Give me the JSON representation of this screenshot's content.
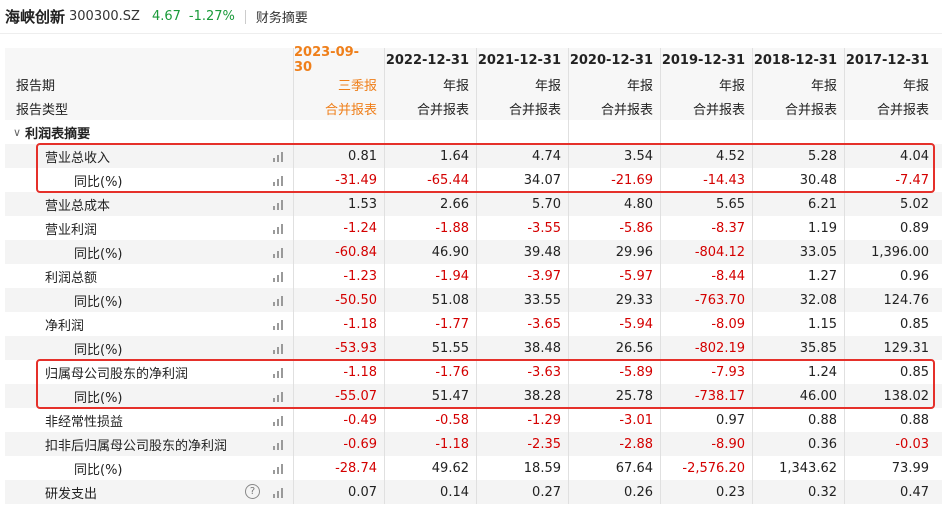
{
  "header": {
    "stock_name": "海峡创新",
    "stock_code": "300300.SZ",
    "price": "4.67",
    "change": "-1.27%",
    "module": "财务摘要"
  },
  "periods": [
    {
      "date": "2023-09-30",
      "type": "三季报",
      "scope": "合并报表",
      "highlight": true
    },
    {
      "date": "2022-12-31",
      "type": "年报",
      "scope": "合并报表"
    },
    {
      "date": "2021-12-31",
      "type": "年报",
      "scope": "合并报表"
    },
    {
      "date": "2020-12-31",
      "type": "年报",
      "scope": "合并报表"
    },
    {
      "date": "2019-12-31",
      "type": "年报",
      "scope": "合并报表"
    },
    {
      "date": "2018-12-31",
      "type": "年报",
      "scope": "合并报表"
    },
    {
      "date": "2017-12-31",
      "type": "年报",
      "scope": "合并报表"
    }
  ],
  "header_labels": {
    "period": "报告期",
    "type": "报告类型"
  },
  "section": {
    "title": "利润表摘要",
    "caret": "∨"
  },
  "rows": [
    {
      "label": "营业总收入",
      "level": 1,
      "values": [
        "0.81",
        "1.64",
        "4.74",
        "3.54",
        "4.52",
        "5.28",
        "4.04"
      ]
    },
    {
      "label": "同比(%)",
      "level": 2,
      "values": [
        "-31.49",
        "-65.44",
        "34.07",
        "-21.69",
        "-14.43",
        "30.48",
        "-7.47"
      ]
    },
    {
      "label": "营业总成本",
      "level": 1,
      "values": [
        "1.53",
        "2.66",
        "5.70",
        "4.80",
        "5.65",
        "6.21",
        "5.02"
      ]
    },
    {
      "label": "营业利润",
      "level": 1,
      "values": [
        "-1.24",
        "-1.88",
        "-3.55",
        "-5.86",
        "-8.37",
        "1.19",
        "0.89"
      ]
    },
    {
      "label": "同比(%)",
      "level": 2,
      "values": [
        "-60.84",
        "46.90",
        "39.48",
        "29.96",
        "-804.12",
        "33.05",
        "1,396.00"
      ]
    },
    {
      "label": "利润总额",
      "level": 1,
      "values": [
        "-1.23",
        "-1.94",
        "-3.97",
        "-5.97",
        "-8.44",
        "1.27",
        "0.96"
      ]
    },
    {
      "label": "同比(%)",
      "level": 2,
      "values": [
        "-50.50",
        "51.08",
        "33.55",
        "29.33",
        "-763.70",
        "32.08",
        "124.76"
      ]
    },
    {
      "label": "净利润",
      "level": 1,
      "values": [
        "-1.18",
        "-1.77",
        "-3.65",
        "-5.94",
        "-8.09",
        "1.15",
        "0.85"
      ]
    },
    {
      "label": "同比(%)",
      "level": 2,
      "values": [
        "-53.93",
        "51.55",
        "38.48",
        "26.56",
        "-802.19",
        "35.85",
        "129.31"
      ]
    },
    {
      "label": "归属母公司股东的净利润",
      "level": 1,
      "values": [
        "-1.18",
        "-1.76",
        "-3.63",
        "-5.89",
        "-7.93",
        "1.24",
        "0.85"
      ]
    },
    {
      "label": "同比(%)",
      "level": 2,
      "values": [
        "-55.07",
        "51.47",
        "38.28",
        "25.78",
        "-738.17",
        "46.00",
        "138.02"
      ]
    },
    {
      "label": "非经常性损益",
      "level": 1,
      "values": [
        "-0.49",
        "-0.58",
        "-1.29",
        "-3.01",
        "0.97",
        "0.88",
        "0.88"
      ]
    },
    {
      "label": "扣非后归属母公司股东的净利润",
      "level": 1,
      "values": [
        "-0.69",
        "-1.18",
        "-2.35",
        "-2.88",
        "-8.90",
        "0.36",
        "-0.03"
      ]
    },
    {
      "label": "同比(%)",
      "level": 2,
      "values": [
        "-28.74",
        "49.62",
        "18.59",
        "67.64",
        "-2,576.20",
        "1,343.62",
        "73.99"
      ]
    },
    {
      "label": "研发支出",
      "level": 1,
      "help": "?",
      "values": [
        "0.07",
        "0.14",
        "0.27",
        "0.26",
        "0.23",
        "0.32",
        "0.47"
      ]
    }
  ],
  "colors": {
    "positive_change": "#1a9a3a",
    "negative_value": "#d40000",
    "highlight_period": "#ef7f1a",
    "annotation_box": "#e5302a"
  }
}
